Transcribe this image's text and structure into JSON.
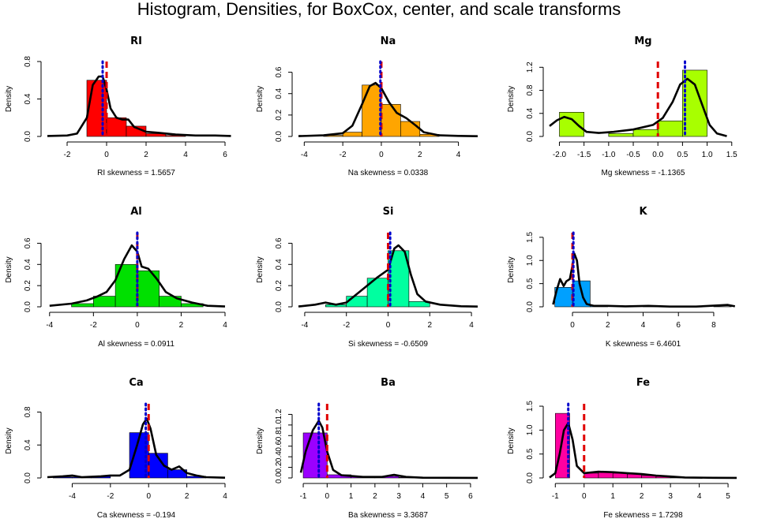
{
  "page_title": "Histogram, Densities, for BoxCox, center, and scale transforms",
  "colors": {
    "mean_line": "#e00000",
    "median_line": "#0000cc",
    "density_line": "#000000"
  },
  "chart_data": [
    {
      "type": "histogram",
      "title": "RI",
      "xlabel": "RI  skewness =  1.5657",
      "ylabel": "Density",
      "fill": "#ff0000",
      "xlim": [
        -3,
        6
      ],
      "ylim": [
        0,
        0.8
      ],
      "xticks": [
        -2,
        0,
        2,
        4,
        6
      ],
      "yticks": [
        0.0,
        0.4,
        0.8
      ],
      "bins": [
        {
          "x0": -1,
          "x1": 0,
          "y": 0.6
        },
        {
          "x0": 0,
          "x1": 1,
          "y": 0.2
        },
        {
          "x0": 1,
          "x1": 2,
          "y": 0.11
        },
        {
          "x0": 2,
          "x1": 3,
          "y": 0.03
        },
        {
          "x0": 3,
          "x1": 4,
          "y": 0.01
        }
      ],
      "density": [
        [
          -3,
          0.005
        ],
        [
          -2,
          0.01
        ],
        [
          -1.5,
          0.03
        ],
        [
          -1,
          0.2
        ],
        [
          -0.7,
          0.55
        ],
        [
          -0.4,
          0.64
        ],
        [
          -0.2,
          0.64
        ],
        [
          0,
          0.5
        ],
        [
          0.2,
          0.3
        ],
        [
          0.5,
          0.2
        ],
        [
          0.8,
          0.18
        ],
        [
          1.1,
          0.18
        ],
        [
          1.4,
          0.1
        ],
        [
          2,
          0.05
        ],
        [
          2.6,
          0.04
        ],
        [
          3.5,
          0.02
        ],
        [
          4.5,
          0.01
        ],
        [
          5.5,
          0.01
        ],
        [
          6.3,
          0.005
        ]
      ],
      "mean": 0,
      "median": -0.2
    },
    {
      "type": "histogram",
      "title": "Na",
      "xlabel": "Na  skewness =  0.0338",
      "ylabel": "Density",
      "fill": "#ffa500",
      "xlim": [
        -4.3,
        5
      ],
      "ylim": [
        0,
        0.7
      ],
      "xticks": [
        -4,
        -2,
        0,
        2,
        4
      ],
      "yticks": [
        0.0,
        0.2,
        0.4,
        0.6
      ],
      "bins": [
        {
          "x0": -3,
          "x1": -2,
          "y": 0.01
        },
        {
          "x0": -2,
          "x1": -1,
          "y": 0.04
        },
        {
          "x0": -1,
          "x1": 0,
          "y": 0.48
        },
        {
          "x0": 0,
          "x1": 1,
          "y": 0.3
        },
        {
          "x0": 1,
          "x1": 2,
          "y": 0.14
        },
        {
          "x0": 2,
          "x1": 3,
          "y": 0.02
        }
      ],
      "density": [
        [
          -4.3,
          0.003
        ],
        [
          -3,
          0.01
        ],
        [
          -2,
          0.03
        ],
        [
          -1.5,
          0.1
        ],
        [
          -1,
          0.3
        ],
        [
          -0.6,
          0.47
        ],
        [
          -0.3,
          0.5
        ],
        [
          0,
          0.45
        ],
        [
          0.4,
          0.32
        ],
        [
          0.8,
          0.22
        ],
        [
          1.3,
          0.17
        ],
        [
          1.8,
          0.1
        ],
        [
          2.2,
          0.04
        ],
        [
          3,
          0.01
        ],
        [
          4,
          0.005
        ],
        [
          5,
          0.002
        ]
      ],
      "mean": 0,
      "median": -0.05
    },
    {
      "type": "histogram",
      "title": "Mg",
      "xlabel": "Mg  skewness =  -1.1365",
      "ylabel": "Density",
      "fill": "#a8ff00",
      "xlim": [
        -2.2,
        1.6
      ],
      "ylim": [
        0,
        1.3
      ],
      "xticks": [
        -2.0,
        -1.5,
        -1.0,
        -0.5,
        0.0,
        0.5,
        1.0,
        1.5
      ],
      "yticks": [
        0.0,
        0.4,
        0.8,
        1.2
      ],
      "bins": [
        {
          "x0": -2,
          "x1": -1.5,
          "y": 0.42
        },
        {
          "x0": -1.5,
          "x1": -1,
          "y": 0.0
        },
        {
          "x0": -1,
          "x1": -0.5,
          "y": 0.05
        },
        {
          "x0": -0.5,
          "x1": 0,
          "y": 0.12
        },
        {
          "x0": 0,
          "x1": 0.5,
          "y": 0.27
        },
        {
          "x0": 0.5,
          "x1": 1,
          "y": 1.15
        }
      ],
      "density": [
        [
          -2.2,
          0.18
        ],
        [
          -2.05,
          0.28
        ],
        [
          -1.9,
          0.34
        ],
        [
          -1.75,
          0.3
        ],
        [
          -1.6,
          0.18
        ],
        [
          -1.45,
          0.08
        ],
        [
          -1.2,
          0.06
        ],
        [
          -0.9,
          0.08
        ],
        [
          -0.5,
          0.12
        ],
        [
          -0.1,
          0.2
        ],
        [
          0.1,
          0.32
        ],
        [
          0.3,
          0.6
        ],
        [
          0.45,
          0.9
        ],
        [
          0.6,
          1.0
        ],
        [
          0.75,
          0.9
        ],
        [
          0.9,
          0.55
        ],
        [
          1.05,
          0.2
        ],
        [
          1.2,
          0.05
        ],
        [
          1.4,
          0.005
        ]
      ],
      "mean": 0,
      "median": 0.55
    },
    {
      "type": "histogram",
      "title": "Al",
      "xlabel": "Al  skewness =  0.0911",
      "ylabel": "Density",
      "fill": "#00e000",
      "xlim": [
        -4.1,
        4
      ],
      "ylim": [
        0,
        0.7
      ],
      "xticks": [
        -4,
        -2,
        0,
        2,
        4
      ],
      "yticks": [
        0.0,
        0.2,
        0.4,
        0.6
      ],
      "bins": [
        {
          "x0": -3,
          "x1": -2,
          "y": 0.03
        },
        {
          "x0": -2,
          "x1": -1,
          "y": 0.1
        },
        {
          "x0": -1,
          "x1": 0,
          "y": 0.4
        },
        {
          "x0": 0,
          "x1": 1,
          "y": 0.34
        },
        {
          "x0": 1,
          "x1": 2,
          "y": 0.1
        },
        {
          "x0": 2,
          "x1": 3,
          "y": 0.03
        }
      ],
      "density": [
        [
          -4,
          0.01
        ],
        [
          -3,
          0.03
        ],
        [
          -2.3,
          0.06
        ],
        [
          -1.8,
          0.1
        ],
        [
          -1.4,
          0.14
        ],
        [
          -1,
          0.25
        ],
        [
          -0.6,
          0.45
        ],
        [
          -0.25,
          0.58
        ],
        [
          0,
          0.52
        ],
        [
          0.2,
          0.38
        ],
        [
          0.5,
          0.36
        ],
        [
          0.9,
          0.26
        ],
        [
          1.3,
          0.14
        ],
        [
          1.8,
          0.08
        ],
        [
          2.5,
          0.04
        ],
        [
          3.2,
          0.01
        ],
        [
          4,
          0.003
        ]
      ],
      "mean": 0,
      "median": 0
    },
    {
      "type": "histogram",
      "title": "Si",
      "xlabel": "Si  skewness =  -0.6509",
      "ylabel": "Density",
      "fill": "#00ffa0",
      "xlim": [
        -4.3,
        4.3
      ],
      "ylim": [
        0,
        0.7
      ],
      "xticks": [
        -4,
        -2,
        0,
        2,
        4
      ],
      "yticks": [
        0.0,
        0.2,
        0.4,
        0.6
      ],
      "bins": [
        {
          "x0": -3,
          "x1": -2,
          "y": 0.02
        },
        {
          "x0": -2,
          "x1": -1,
          "y": 0.1
        },
        {
          "x0": -1,
          "x1": 0,
          "y": 0.27
        },
        {
          "x0": 0,
          "x1": 1,
          "y": 0.53
        },
        {
          "x0": 1,
          "x1": 2,
          "y": 0.05
        }
      ],
      "density": [
        [
          -4.3,
          0.003
        ],
        [
          -3.5,
          0.02
        ],
        [
          -3,
          0.04
        ],
        [
          -2.5,
          0.02
        ],
        [
          -2,
          0.04
        ],
        [
          -1.5,
          0.12
        ],
        [
          -1,
          0.2
        ],
        [
          -0.5,
          0.28
        ],
        [
          0,
          0.35
        ],
        [
          0.3,
          0.55
        ],
        [
          0.5,
          0.58
        ],
        [
          0.8,
          0.52
        ],
        [
          1.1,
          0.3
        ],
        [
          1.4,
          0.12
        ],
        [
          1.8,
          0.05
        ],
        [
          2.5,
          0.02
        ],
        [
          3.5,
          0.005
        ],
        [
          4.3,
          0.002
        ]
      ],
      "mean": 0,
      "median": 0.1
    },
    {
      "type": "histogram",
      "title": "K",
      "xlabel": "K  skewness =  6.4601",
      "ylabel": "Density",
      "fill": "#00a0ff",
      "xlim": [
        -1.3,
        9.3
      ],
      "ylim": [
        0,
        1.6
      ],
      "xticks": [
        0,
        2,
        4,
        6,
        8
      ],
      "yticks": [
        0.0,
        0.5,
        1.0,
        1.5
      ],
      "bins": [
        {
          "x0": -1,
          "x1": 0,
          "y": 0.42
        },
        {
          "x0": 0,
          "x1": 1,
          "y": 0.56
        },
        {
          "x0": 1,
          "x1": 2,
          "y": 0.02
        },
        {
          "x0": 4,
          "x1": 5,
          "y": 0.005
        },
        {
          "x0": 8,
          "x1": 9,
          "y": 0.005
        }
      ],
      "density": [
        [
          -1.1,
          0.05
        ],
        [
          -0.9,
          0.35
        ],
        [
          -0.7,
          0.6
        ],
        [
          -0.5,
          0.45
        ],
        [
          -0.35,
          0.55
        ],
        [
          -0.15,
          0.6
        ],
        [
          0,
          0.9
        ],
        [
          0.1,
          1.15
        ],
        [
          0.25,
          1.0
        ],
        [
          0.4,
          0.5
        ],
        [
          0.6,
          0.2
        ],
        [
          0.8,
          0.06
        ],
        [
          1.2,
          0.02
        ],
        [
          2,
          0.02
        ],
        [
          3,
          0.01
        ],
        [
          4.3,
          0.02
        ],
        [
          5.5,
          0.005
        ],
        [
          7,
          0.005
        ],
        [
          8.3,
          0.03
        ],
        [
          8.8,
          0.04
        ],
        [
          9.2,
          0.01
        ]
      ],
      "mean": 0,
      "median": 0.05
    },
    {
      "type": "histogram",
      "title": "Ca",
      "xlabel": "Ca  skewness =  -0.194",
      "ylabel": "Density",
      "fill": "#0000ff",
      "xlim": [
        -5.3,
        4
      ],
      "ylim": [
        0,
        0.9
      ],
      "xticks": [
        -4,
        -2,
        0,
        2,
        4
      ],
      "yticks": [
        0.0,
        0.4,
        0.8
      ],
      "bins": [
        {
          "x0": -5,
          "x1": -4,
          "y": 0.01
        },
        {
          "x0": -4,
          "x1": -3,
          "y": 0.01
        },
        {
          "x0": -3,
          "x1": -2,
          "y": 0.02
        },
        {
          "x0": -1,
          "x1": 0,
          "y": 0.55
        },
        {
          "x0": 0,
          "x1": 1,
          "y": 0.3
        },
        {
          "x0": 1,
          "x1": 2,
          "y": 0.1
        },
        {
          "x0": 2,
          "x1": 3,
          "y": 0.02
        }
      ],
      "density": [
        [
          -5.3,
          0.01
        ],
        [
          -4.5,
          0.02
        ],
        [
          -4,
          0.03
        ],
        [
          -3.5,
          0.01
        ],
        [
          -2.5,
          0.02
        ],
        [
          -2,
          0.03
        ],
        [
          -1.5,
          0.03
        ],
        [
          -1,
          0.1
        ],
        [
          -0.6,
          0.4
        ],
        [
          -0.3,
          0.65
        ],
        [
          -0.1,
          0.72
        ],
        [
          0.1,
          0.6
        ],
        [
          0.4,
          0.28
        ],
        [
          0.8,
          0.15
        ],
        [
          1.2,
          0.1
        ],
        [
          1.6,
          0.14
        ],
        [
          2,
          0.06
        ],
        [
          2.5,
          0.03
        ],
        [
          3,
          0.01
        ],
        [
          4,
          0.003
        ]
      ],
      "mean": 0,
      "median": -0.15
    },
    {
      "type": "histogram",
      "title": "Ba",
      "xlabel": "Ba  skewness =  3.3687",
      "ylabel": "Density",
      "fill": "#9b00ff",
      "xlim": [
        -1.2,
        6.3
      ],
      "ylim": [
        0,
        1.4
      ],
      "xticks": [
        -1,
        0,
        1,
        2,
        3,
        4,
        5,
        6
      ],
      "yticks": [
        0.0,
        0.2,
        0.4,
        0.6,
        0.8,
        1.0,
        1.2
      ],
      "bins": [
        {
          "x0": -1,
          "x1": 0,
          "y": 0.85
        },
        {
          "x0": 0,
          "x1": 1,
          "y": 0.06
        },
        {
          "x0": 1,
          "x1": 2,
          "y": 0.03
        },
        {
          "x0": 2,
          "x1": 3,
          "y": 0.03
        },
        {
          "x0": 3,
          "x1": 4,
          "y": 0.01
        }
      ],
      "density": [
        [
          -1.1,
          0.1
        ],
        [
          -0.9,
          0.5
        ],
        [
          -0.6,
          0.9
        ],
        [
          -0.35,
          1.08
        ],
        [
          -0.2,
          0.95
        ],
        [
          0,
          0.5
        ],
        [
          0.25,
          0.15
        ],
        [
          0.6,
          0.05
        ],
        [
          1.5,
          0.02
        ],
        [
          2.3,
          0.02
        ],
        [
          2.8,
          0.06
        ],
        [
          3.3,
          0.02
        ],
        [
          4,
          0.005
        ],
        [
          5,
          0.003
        ],
        [
          6.3,
          0.002
        ]
      ],
      "mean": 0,
      "median": -0.35
    },
    {
      "type": "histogram",
      "title": "Fe",
      "xlabel": "Fe  skewness =  1.7298",
      "ylabel": "Density",
      "fill": "#ff00a0",
      "xlim": [
        -1.2,
        5.3
      ],
      "ylim": [
        0,
        1.55
      ],
      "xticks": [
        -1,
        0,
        1,
        2,
        3,
        4,
        5
      ],
      "yticks": [
        0.0,
        0.5,
        1.0,
        1.5
      ],
      "bins": [
        {
          "x0": -1,
          "x1": -0.5,
          "y": 1.35
        },
        {
          "x0": 0,
          "x1": 0.5,
          "y": 0.1
        },
        {
          "x0": 0.5,
          "x1": 1,
          "y": 0.12
        },
        {
          "x0": 1,
          "x1": 1.5,
          "y": 0.1
        },
        {
          "x0": 1.5,
          "x1": 2,
          "y": 0.08
        },
        {
          "x0": 2,
          "x1": 2.5,
          "y": 0.05
        },
        {
          "x0": 2.5,
          "x1": 3,
          "y": 0.03
        },
        {
          "x0": 3,
          "x1": 3.5,
          "y": 0.01
        },
        {
          "x0": 3.5,
          "x1": 4,
          "y": 0.01
        }
      ],
      "density": [
        [
          -1.2,
          0.01
        ],
        [
          -1,
          0.1
        ],
        [
          -0.85,
          0.5
        ],
        [
          -0.7,
          1.0
        ],
        [
          -0.55,
          1.15
        ],
        [
          -0.4,
          0.8
        ],
        [
          -0.25,
          0.25
        ],
        [
          0,
          0.1
        ],
        [
          0.5,
          0.13
        ],
        [
          1,
          0.12
        ],
        [
          1.5,
          0.1
        ],
        [
          2,
          0.08
        ],
        [
          2.5,
          0.05
        ],
        [
          3,
          0.03
        ],
        [
          3.5,
          0.01
        ],
        [
          4.5,
          0.003
        ],
        [
          5.3,
          0.001
        ]
      ],
      "mean": 0,
      "median": -0.55
    }
  ]
}
